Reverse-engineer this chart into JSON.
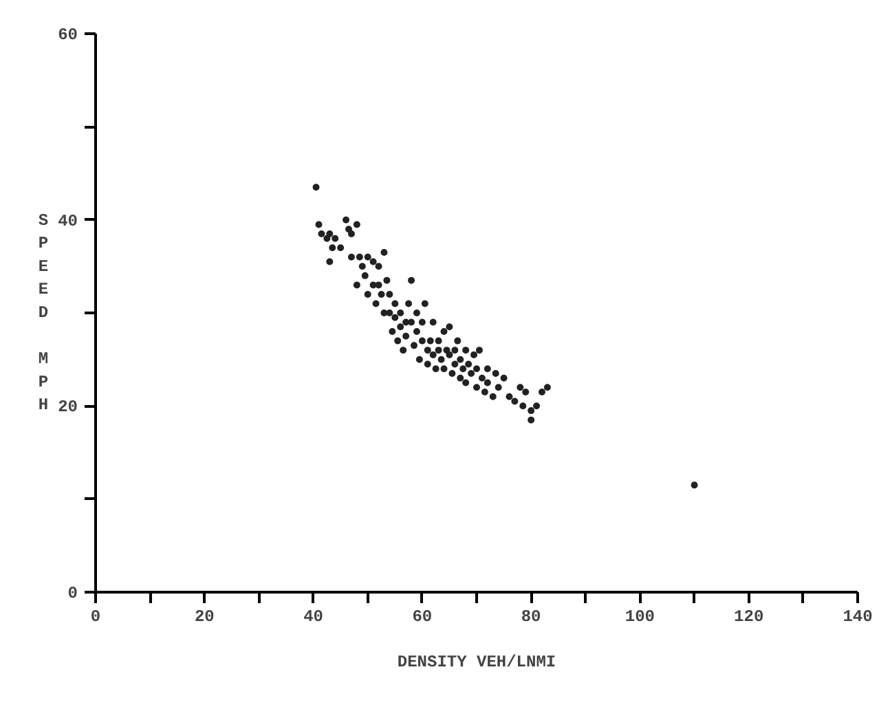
{
  "chart_data": {
    "type": "scatter",
    "xlabel": "DENSITY VEH/LNMI",
    "ylabel": "SPEED MPH",
    "xlim": [
      0,
      140
    ],
    "ylim": [
      0,
      60
    ],
    "xticks": [
      0,
      {
        "value": 10,
        "label": null
      },
      20,
      {
        "value": 30,
        "label": null
      },
      40,
      {
        "value": 50,
        "label": null
      },
      60,
      {
        "value": 70,
        "label": null
      },
      80,
      {
        "value": 90,
        "label": null
      },
      100,
      {
        "value": 110,
        "label": null
      },
      120,
      {
        "value": 130,
        "label": null
      },
      140
    ],
    "yticks": [
      0,
      {
        "value": 10,
        "label": null
      },
      20,
      {
        "value": 30,
        "label": null
      },
      40,
      {
        "value": 50,
        "label": null
      },
      60
    ],
    "grid": false,
    "marker": "circle",
    "series": [
      {
        "color": "#222222",
        "x": [
          40.5,
          41,
          41.5,
          42.5,
          43,
          43.5,
          43,
          44,
          45,
          46,
          46.5,
          47,
          47,
          48,
          48.5,
          48,
          49,
          49.5,
          50,
          50,
          51,
          51,
          51.5,
          52,
          52,
          52.5,
          53,
          53,
          53.5,
          54,
          54,
          54.5,
          55,
          55,
          55.5,
          56,
          56,
          56.5,
          57,
          57,
          57.5,
          58,
          58,
          58.5,
          59,
          59,
          59.5,
          60,
          60,
          60.5,
          61,
          61,
          61.5,
          62,
          62,
          62.5,
          63,
          63,
          63.5,
          64,
          64,
          64.5,
          65,
          65,
          65.5,
          66,
          66,
          66.5,
          67,
          67,
          67.5,
          68,
          68,
          68.5,
          69,
          69.5,
          70,
          70,
          70.5,
          71,
          71.5,
          72,
          72,
          73,
          73.5,
          74,
          75,
          76,
          77,
          78,
          78.5,
          79,
          80,
          80,
          81,
          82,
          83,
          110
        ],
        "values": [
          43.5,
          39.5,
          38.5,
          38,
          38.5,
          37,
          35.5,
          38,
          37,
          40,
          39,
          38.5,
          36,
          39.5,
          36,
          33,
          35,
          34,
          36,
          32,
          35.5,
          33,
          31,
          35,
          33,
          32,
          30,
          36.5,
          33.5,
          32,
          30,
          28,
          31,
          29.5,
          27,
          30,
          28.5,
          26,
          29,
          27.5,
          31,
          33.5,
          29,
          26.5,
          30,
          28,
          25,
          29,
          27,
          31,
          26,
          24.5,
          27,
          25.5,
          29,
          24,
          26,
          27,
          25,
          28,
          24,
          26,
          25.5,
          28.5,
          23.5,
          26,
          24.5,
          27,
          25,
          23,
          24,
          26,
          22.5,
          24.5,
          23.5,
          25.5,
          24,
          22,
          26,
          23,
          21.5,
          24,
          22.5,
          21,
          23.5,
          22,
          23,
          21,
          20.5,
          22,
          20,
          21.5,
          19.5,
          18.5,
          20,
          21.5,
          22,
          11.5
        ]
      }
    ]
  }
}
